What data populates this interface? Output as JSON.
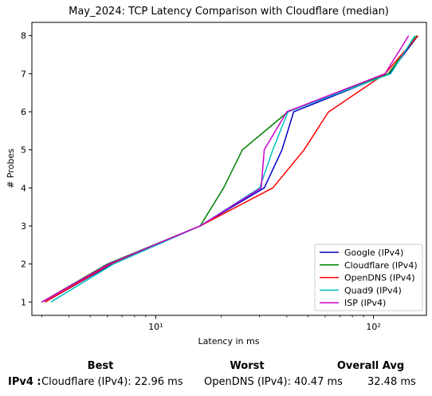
{
  "chart_data": {
    "type": "line",
    "title": "May_2024: TCP Latency Comparison with Cloudflare (median)",
    "xlabel": "Latency in ms",
    "ylabel": "# Probes",
    "xscale": "log",
    "xlim": [
      2.7,
      175
    ],
    "ylim": [
      0.65,
      8.35
    ],
    "xticks": [
      {
        "value": 10,
        "label": "10¹"
      },
      {
        "value": 100,
        "label": "10²"
      }
    ],
    "yticks": [
      1,
      2,
      3,
      4,
      5,
      6,
      7,
      8
    ],
    "legend_position": "lower-right",
    "grid": false,
    "series": [
      {
        "name": "Google (IPv4)",
        "color": "#0000cc",
        "x": [
          3.1,
          6.3,
          16,
          31.5,
          38,
          43,
          118,
          160
        ],
        "y": [
          1,
          2,
          3,
          4,
          5,
          6,
          7,
          8
        ]
      },
      {
        "name": "Cloudflare (IPv4)",
        "color": "#008000",
        "x": [
          3.0,
          6.0,
          16,
          20.5,
          25,
          40.5,
          117,
          158
        ],
        "y": [
          1,
          2,
          3,
          4,
          5,
          6,
          7,
          8
        ]
      },
      {
        "name": "OpenDNS (IPv4)",
        "color": "#ff0000",
        "x": [
          3.1,
          6.2,
          16,
          34.5,
          48,
          62,
          113,
          160
        ],
        "y": [
          1,
          2,
          3,
          4,
          5,
          5.99,
          7,
          8
        ]
      },
      {
        "name": "Quad9 (IPv4)",
        "color": "#00c0c0",
        "x": [
          3.3,
          6.4,
          16,
          30,
          34.5,
          40.5,
          120,
          155
        ],
        "y": [
          1,
          2,
          3,
          4,
          5,
          6,
          7,
          8
        ]
      },
      {
        "name": "ISP (IPv4)",
        "color": "#cc00cc",
        "x": [
          3.0,
          6.1,
          16,
          30.5,
          31.5,
          40,
          113,
          145
        ],
        "y": [
          1,
          2,
          3,
          4,
          5,
          6,
          7,
          8
        ]
      }
    ]
  },
  "stats": {
    "headers": {
      "best": "Best",
      "worst": "Worst",
      "avg": "Overall Avg"
    },
    "row_label": "IPv4 :",
    "best": "Cloudflare (IPv4): 22.96 ms",
    "worst": "OpenDNS (IPv4): 40.47 ms",
    "avg": "32.48 ms"
  }
}
